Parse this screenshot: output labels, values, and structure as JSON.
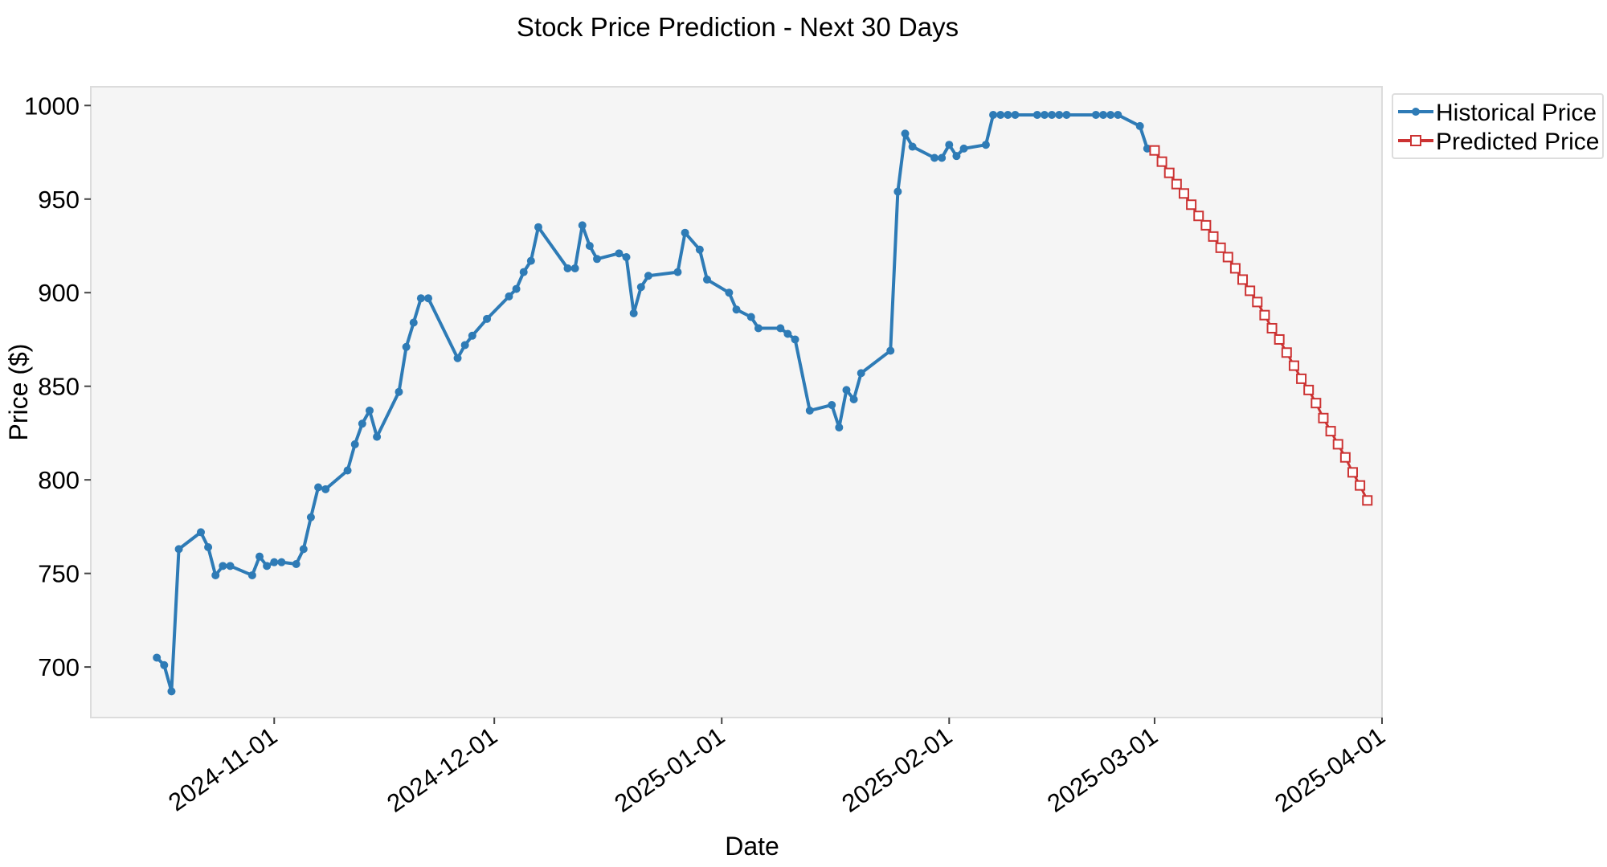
{
  "chart_data": {
    "type": "line",
    "title": "Stock Price Prediction - Next 30 Days",
    "xlabel": "Date",
    "ylabel": "Price ($)",
    "xlim": [
      "2024-10-07",
      "2025-04-01"
    ],
    "ylim": [
      673,
      1010
    ],
    "grid": false,
    "legend_position": "outside top-right",
    "x_ticks": [
      "2024-11-01",
      "2024-12-01",
      "2025-01-01",
      "2025-02-01",
      "2025-03-01",
      "2025-04-01"
    ],
    "y_ticks": [
      700,
      750,
      800,
      850,
      900,
      950,
      1000
    ],
    "series": [
      {
        "name": "Historical Price",
        "color": "#2e7bb6",
        "marker": "circle",
        "points": [
          {
            "x": "2024-10-16",
            "y": 705
          },
          {
            "x": "2024-10-17",
            "y": 701
          },
          {
            "x": "2024-10-18",
            "y": 687
          },
          {
            "x": "2024-10-19",
            "y": 763
          },
          {
            "x": "2024-10-22",
            "y": 772
          },
          {
            "x": "2024-10-23",
            "y": 764
          },
          {
            "x": "2024-10-24",
            "y": 749
          },
          {
            "x": "2024-10-25",
            "y": 754
          },
          {
            "x": "2024-10-26",
            "y": 754
          },
          {
            "x": "2024-10-29",
            "y": 749
          },
          {
            "x": "2024-10-30",
            "y": 759
          },
          {
            "x": "2024-10-31",
            "y": 754
          },
          {
            "x": "2024-11-01",
            "y": 756
          },
          {
            "x": "2024-11-02",
            "y": 756
          },
          {
            "x": "2024-11-04",
            "y": 755
          },
          {
            "x": "2024-11-05",
            "y": 763
          },
          {
            "x": "2024-11-06",
            "y": 780
          },
          {
            "x": "2024-11-07",
            "y": 796
          },
          {
            "x": "2024-11-08",
            "y": 795
          },
          {
            "x": "2024-11-11",
            "y": 805
          },
          {
            "x": "2024-11-12",
            "y": 819
          },
          {
            "x": "2024-11-13",
            "y": 830
          },
          {
            "x": "2024-11-14",
            "y": 837
          },
          {
            "x": "2024-11-15",
            "y": 823
          },
          {
            "x": "2024-11-18",
            "y": 847
          },
          {
            "x": "2024-11-19",
            "y": 871
          },
          {
            "x": "2024-11-20",
            "y": 884
          },
          {
            "x": "2024-11-21",
            "y": 897
          },
          {
            "x": "2024-11-22",
            "y": 897
          },
          {
            "x": "2024-11-26",
            "y": 865
          },
          {
            "x": "2024-11-27",
            "y": 872
          },
          {
            "x": "2024-11-28",
            "y": 877
          },
          {
            "x": "2024-11-30",
            "y": 886
          },
          {
            "x": "2024-12-03",
            "y": 898
          },
          {
            "x": "2024-12-04",
            "y": 902
          },
          {
            "x": "2024-12-05",
            "y": 911
          },
          {
            "x": "2024-12-06",
            "y": 917
          },
          {
            "x": "2024-12-07",
            "y": 935
          },
          {
            "x": "2024-12-11",
            "y": 913
          },
          {
            "x": "2024-12-12",
            "y": 913
          },
          {
            "x": "2024-12-13",
            "y": 936
          },
          {
            "x": "2024-12-14",
            "y": 925
          },
          {
            "x": "2024-12-15",
            "y": 918
          },
          {
            "x": "2024-12-18",
            "y": 921
          },
          {
            "x": "2024-12-19",
            "y": 919
          },
          {
            "x": "2024-12-20",
            "y": 889
          },
          {
            "x": "2024-12-21",
            "y": 903
          },
          {
            "x": "2024-12-22",
            "y": 909
          },
          {
            "x": "2024-12-26",
            "y": 911
          },
          {
            "x": "2024-12-27",
            "y": 932
          },
          {
            "x": "2024-12-29",
            "y": 923
          },
          {
            "x": "2024-12-30",
            "y": 907
          },
          {
            "x": "2025-01-02",
            "y": 900
          },
          {
            "x": "2025-01-03",
            "y": 891
          },
          {
            "x": "2025-01-05",
            "y": 887
          },
          {
            "x": "2025-01-06",
            "y": 881
          },
          {
            "x": "2025-01-09",
            "y": 881
          },
          {
            "x": "2025-01-10",
            "y": 878
          },
          {
            "x": "2025-01-11",
            "y": 875
          },
          {
            "x": "2025-01-13",
            "y": 837
          },
          {
            "x": "2025-01-16",
            "y": 840
          },
          {
            "x": "2025-01-17",
            "y": 828
          },
          {
            "x": "2025-01-18",
            "y": 848
          },
          {
            "x": "2025-01-19",
            "y": 843
          },
          {
            "x": "2025-01-20",
            "y": 857
          },
          {
            "x": "2025-01-24",
            "y": 869
          },
          {
            "x": "2025-01-25",
            "y": 954
          },
          {
            "x": "2025-01-26",
            "y": 985
          },
          {
            "x": "2025-01-27",
            "y": 978
          },
          {
            "x": "2025-01-30",
            "y": 972
          },
          {
            "x": "2025-01-31",
            "y": 972
          },
          {
            "x": "2025-02-01",
            "y": 979
          },
          {
            "x": "2025-02-02",
            "y": 973
          },
          {
            "x": "2025-02-03",
            "y": 977
          },
          {
            "x": "2025-02-06",
            "y": 979
          },
          {
            "x": "2025-02-07",
            "y": 995
          },
          {
            "x": "2025-02-08",
            "y": 995
          },
          {
            "x": "2025-02-09",
            "y": 995
          },
          {
            "x": "2025-02-10",
            "y": 995
          },
          {
            "x": "2025-02-13",
            "y": 995
          },
          {
            "x": "2025-02-14",
            "y": 995
          },
          {
            "x": "2025-02-15",
            "y": 995
          },
          {
            "x": "2025-02-16",
            "y": 995
          },
          {
            "x": "2025-02-17",
            "y": 995
          },
          {
            "x": "2025-02-21",
            "y": 995
          },
          {
            "x": "2025-02-22",
            "y": 995
          },
          {
            "x": "2025-02-23",
            "y": 995
          },
          {
            "x": "2025-02-24",
            "y": 995
          },
          {
            "x": "2025-02-27",
            "y": 989
          },
          {
            "x": "2025-02-28",
            "y": 977
          }
        ]
      },
      {
        "name": "Predicted Price",
        "color": "#cc3333",
        "marker": "square-open",
        "x_start": "2025-03-01",
        "x_step_days": 1,
        "values": [
          976,
          970,
          964,
          958,
          953,
          947,
          941,
          936,
          930,
          924,
          919,
          913,
          907,
          901,
          895,
          888,
          881,
          875,
          868,
          861,
          854,
          848,
          841,
          833,
          826,
          819,
          812,
          804,
          797,
          789
        ]
      }
    ]
  }
}
